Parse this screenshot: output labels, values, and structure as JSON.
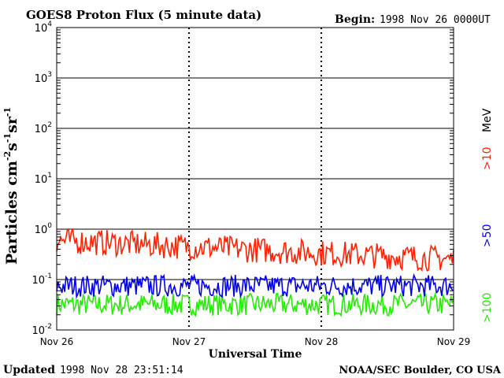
{
  "chart_data": {
    "type": "line",
    "title": "GOES8 Proton Flux (5 minute data)",
    "begin_label": "Begin:",
    "begin_value": "1998 Nov 26 0000UT",
    "xlabel": "Universal Time",
    "ylabel_main": "Particles cm",
    "ylabel_exp1": "-2",
    "ylabel_mid1": "s",
    "ylabel_exp2": "-1",
    "ylabel_mid2": "sr",
    "ylabel_exp3": "-1",
    "x_tick_labels": [
      "Nov 26",
      "Nov 27",
      "Nov 28",
      "Nov 29"
    ],
    "xlim_days": [
      0,
      3
    ],
    "y_scale": "log",
    "ylim": [
      0.01,
      10000
    ],
    "y_ticks": [
      {
        "base": "10",
        "exp": "-2"
      },
      {
        "base": "10",
        "exp": "-1"
      },
      {
        "base": "10",
        "exp": "0"
      },
      {
        "base": "10",
        "exp": "1"
      },
      {
        "base": "10",
        "exp": "2"
      },
      {
        "base": "10",
        "exp": "3"
      },
      {
        "base": "10",
        "exp": "4"
      }
    ],
    "grid": "horizontal at decades",
    "legend_unit": "MeV",
    "series": [
      {
        "name": ">10",
        "color": "#ff2200",
        "typical_range": [
          0.15,
          1.3
        ],
        "trend": "declining from ~0.6 to ~0.25"
      },
      {
        "name": ">50",
        "color": "#0000ee",
        "typical_range": [
          0.04,
          0.16
        ],
        "trend": "roughly flat ~0.07"
      },
      {
        "name": ">100",
        "color": "#22ee00",
        "typical_range": [
          0.018,
          0.07
        ],
        "trend": "roughly flat ~0.03"
      }
    ]
  },
  "footer": {
    "updated_label": "Updated",
    "updated_value": "1998 Nov 28 23:51:14",
    "credit": "NOAA/SEC Boulder, CO USA"
  }
}
